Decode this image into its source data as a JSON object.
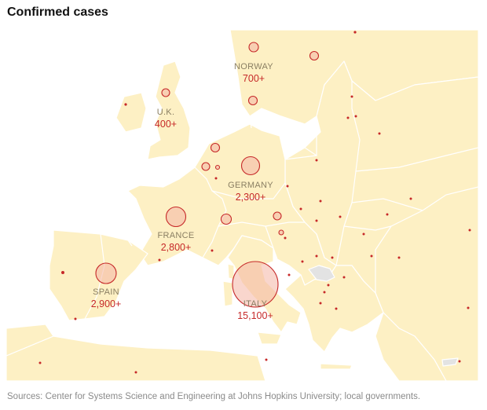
{
  "title": "Confirmed cases",
  "source": "Sources: Center for Systems Science and Engineering at Johns Hopkins University; local governments.",
  "colors": {
    "land": "#fdf0c4",
    "border": "#ffffff",
    "sea": "#ffffff",
    "bubble_stroke": "#c62828",
    "bubble_fill": "#f4b4a4",
    "label_name": "#8a7f63",
    "label_count": "#c62828",
    "outside_region": "#e3e3e3"
  },
  "labels": [
    {
      "id": "norway",
      "name": "NORWAY",
      "count": "700+"
    },
    {
      "id": "uk",
      "name": "U.K.",
      "count": "400+"
    },
    {
      "id": "germany",
      "name": "GERMANY",
      "count": "2,300+"
    },
    {
      "id": "france",
      "name": "FRANCE",
      "count": "2,800+"
    },
    {
      "id": "spain",
      "name": "SPAIN",
      "count": "2,900+"
    },
    {
      "id": "italy",
      "name": "ITALY",
      "count": "15,100+"
    }
  ],
  "bubbles": [
    {
      "name": "Italy",
      "cases": 15100
    },
    {
      "name": "Spain",
      "cases": 2900
    },
    {
      "name": "France",
      "cases": 2800
    },
    {
      "name": "Germany",
      "cases": 2300
    },
    {
      "name": "Norway",
      "cases": 700
    },
    {
      "name": "Sweden",
      "cases": 500
    },
    {
      "name": "Denmark",
      "cases": 400
    },
    {
      "name": "Switzerland",
      "cases": 800
    },
    {
      "name": "Netherlands",
      "cases": 500
    },
    {
      "name": "Belgium",
      "cases": 350
    },
    {
      "name": "Austria",
      "cases": 300
    },
    {
      "name": "United Kingdom",
      "cases": 400
    }
  ]
}
